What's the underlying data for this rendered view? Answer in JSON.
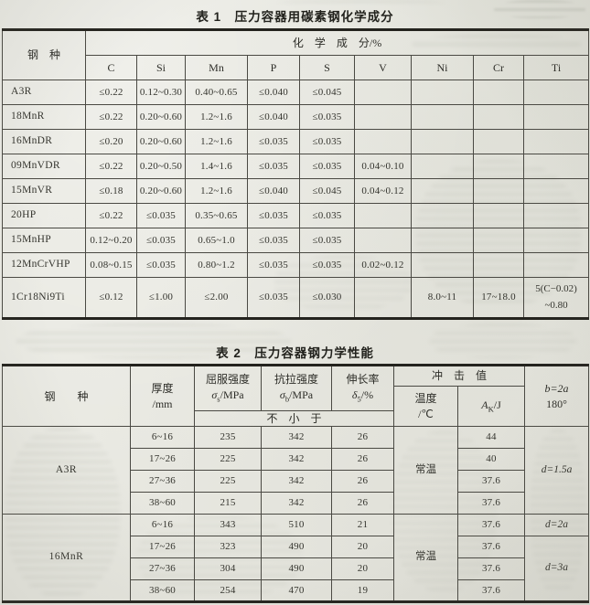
{
  "colors": {
    "paper": "#e9e9e2",
    "ink": "#33332d",
    "grid_line": "#4a4943",
    "heavy_rule": "#24231e"
  },
  "table1": {
    "title": "表 1　压力容器用碳素钢化学成分",
    "header": {
      "steel_type": "钢　种",
      "group": "化　学　成　分/%",
      "elements": [
        "C",
        "Si",
        "Mn",
        "P",
        "S",
        "V",
        "Ni",
        "Cr",
        "Ti"
      ]
    },
    "rows": [
      {
        "name": "A3R",
        "C": "≤0.22",
        "Si": "0.12~0.30",
        "Mn": "0.40~0.65",
        "P": "≤0.040",
        "S": "≤0.045",
        "V": "",
        "Ni": "",
        "Cr": "",
        "Ti": ""
      },
      {
        "name": "18MnR",
        "C": "≤0.22",
        "Si": "0.20~0.60",
        "Mn": "1.2~1.6",
        "P": "≤0.040",
        "S": "≤0.035",
        "V": "",
        "Ni": "",
        "Cr": "",
        "Ti": ""
      },
      {
        "name": "16MnDR",
        "C": "≤0.20",
        "Si": "0.20~0.60",
        "Mn": "1.2~1.6",
        "P": "≤0.035",
        "S": "≤0.035",
        "V": "",
        "Ni": "",
        "Cr": "",
        "Ti": ""
      },
      {
        "name": "09MnVDR",
        "C": "≤0.22",
        "Si": "0.20~0.50",
        "Mn": "1.4~1.6",
        "P": "≤0.035",
        "S": "≤0.035",
        "V": "0.04~0.10",
        "Ni": "",
        "Cr": "",
        "Ti": ""
      },
      {
        "name": "15MnVR",
        "C": "≤0.18",
        "Si": "0.20~0.60",
        "Mn": "1.2~1.6",
        "P": "≤0.040",
        "S": "≤0.045",
        "V": "0.04~0.12",
        "Ni": "",
        "Cr": "",
        "Ti": ""
      },
      {
        "name": "20HP",
        "C": "≤0.22",
        "Si": "≤0.035",
        "Mn": "0.35~0.65",
        "P": "≤0.035",
        "S": "≤0.035",
        "V": "",
        "Ni": "",
        "Cr": "",
        "Ti": ""
      },
      {
        "name": "15MnHP",
        "C": "0.12~0.20",
        "Si": "≤0.035",
        "Mn": "0.65~1.0",
        "P": "≤0.035",
        "S": "≤0.035",
        "V": "",
        "Ni": "",
        "Cr": "",
        "Ti": ""
      },
      {
        "name": "12MnCrVHP",
        "C": "0.08~0.15",
        "Si": "≤0.035",
        "Mn": "0.80~1.2",
        "P": "≤0.035",
        "S": "≤0.035",
        "V": "0.02~0.12",
        "Ni": "",
        "Cr": "",
        "Ti": ""
      },
      {
        "name": "1Cr18Ni9Ti",
        "C": "≤0.12",
        "Si": "≤1.00",
        "Mn": "≤2.00",
        "P": "≤0.035",
        "S": "≤0.030",
        "V": "",
        "Ni": "8.0~11",
        "Cr": "17~18.0",
        "Ti": "5(C−0.02) ~0.80"
      }
    ]
  },
  "table2": {
    "title": "表 2　压力容器钢力学性能",
    "header": {
      "steel_type": "钢　　种",
      "thickness_line1": "厚度",
      "thickness_line2": "/mm",
      "yield_label": "屈服强度",
      "yield_sym": "σ",
      "yield_sub": "s",
      "yield_unit": "/MPa",
      "tensile_label": "抗拉强度",
      "tensile_sym": "σ",
      "tensile_sub": "b",
      "tensile_unit": "/MPa",
      "elong_label": "伸长率",
      "elong_sym": "δ",
      "elong_sub": "5",
      "elong_unit": "/%",
      "min_label": "不　小　于",
      "impact_label": "冲　击　值",
      "temp_line1": "温度",
      "temp_line2": "/℃",
      "ak_sym": "A",
      "ak_sub": "K",
      "ak_unit": "/J",
      "bend_line1": "b=2a",
      "bend_line2": "180°"
    },
    "blocks": [
      {
        "steel": "A3R",
        "temp": "常温",
        "rows": [
          {
            "thickness": "6~16",
            "yield": "235",
            "tensile": "342",
            "elong": "26",
            "ak": "44"
          },
          {
            "thickness": "17~26",
            "yield": "225",
            "tensile": "342",
            "elong": "26",
            "ak": "40"
          },
          {
            "thickness": "27~36",
            "yield": "225",
            "tensile": "342",
            "elong": "26",
            "ak": "37.6"
          },
          {
            "thickness": "38~60",
            "yield": "215",
            "tensile": "342",
            "elong": "26",
            "ak": "37.6"
          }
        ],
        "bend": [
          {
            "text": "d=1.5a",
            "rows": 4
          }
        ]
      },
      {
        "steel": "16MnR",
        "temp": "常温",
        "rows": [
          {
            "thickness": "6~16",
            "yield": "343",
            "tensile": "510",
            "elong": "21",
            "ak": "37.6"
          },
          {
            "thickness": "17~26",
            "yield": "323",
            "tensile": "490",
            "elong": "20",
            "ak": "37.6"
          },
          {
            "thickness": "27~36",
            "yield": "304",
            "tensile": "490",
            "elong": "20",
            "ak": "37.6"
          },
          {
            "thickness": "38~60",
            "yield": "254",
            "tensile": "470",
            "elong": "19",
            "ak": "37.6"
          }
        ],
        "bend": [
          {
            "text": "d=2a",
            "rows": 1
          },
          {
            "text": "d=3a",
            "rows": 3
          }
        ]
      }
    ]
  }
}
